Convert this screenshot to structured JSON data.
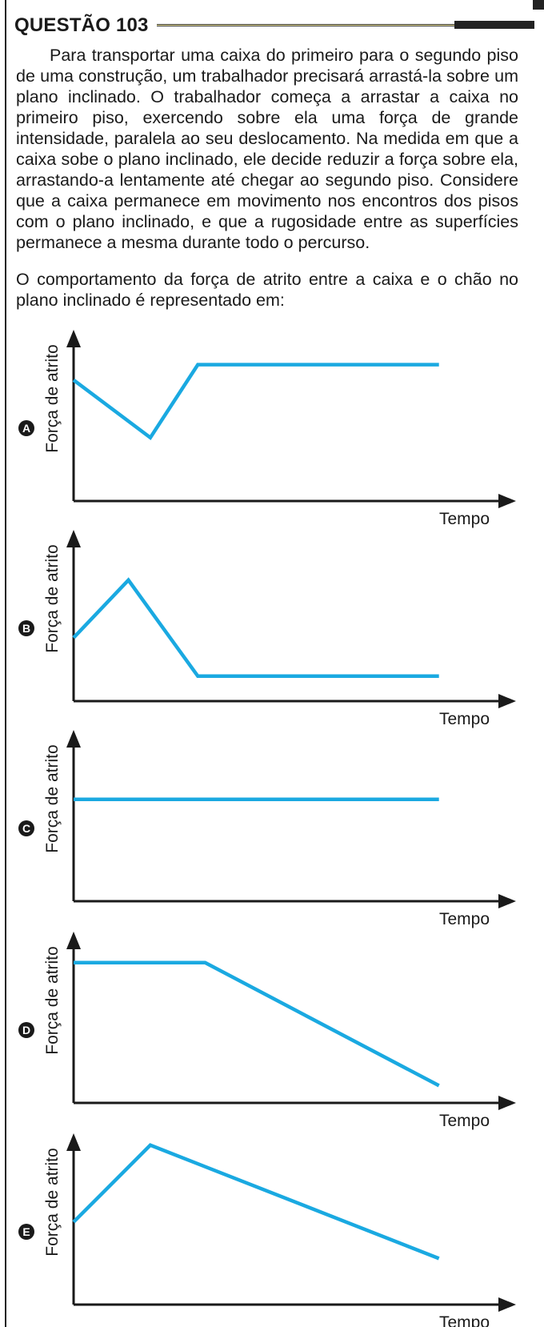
{
  "question": {
    "title": "QUESTÃO 103",
    "stem": "Para transportar uma caixa do primeiro para o segundo piso de uma construção, um trabalhador precisará arrastá-la sobre um plano inclinado. O trabalhador começa a arrastar a caixa no primeiro piso, exercendo sobre ela uma força de grande intensidade, paralela ao seu deslocamento. Na medida em que a caixa sobe o plano inclinado, ele decide reduzir a força sobre ela, arrastando-a lentamente até chegar ao segundo piso. Considere que a caixa permanece em movimento nos encontros dos pisos com o plano inclinado, e que a rugosidade entre as superfícies permanece a mesma durante todo o percurso.",
    "prompt": "O comportamento da força de atrito entre a caixa e o chão no plano inclinado é representado em:"
  },
  "colors": {
    "line": "#1aa9e1",
    "axis": "#1a1a1a"
  },
  "chart_data": [
    {
      "option": "A",
      "type": "line",
      "ylabel": "Força de atrito",
      "xlabel": "Tempo",
      "x": [
        0,
        0.21,
        0.34,
        1.0
      ],
      "y": [
        0.63,
        0.33,
        0.71,
        0.71
      ],
      "xlim": [
        0,
        1.2
      ],
      "ylim": [
        0,
        1
      ]
    },
    {
      "option": "B",
      "type": "line",
      "ylabel": "Força de atrito",
      "xlabel": "Tempo",
      "x": [
        0,
        0.15,
        0.34,
        1.0
      ],
      "y": [
        0.33,
        0.63,
        0.13,
        0.13
      ],
      "xlim": [
        0,
        1.2
      ],
      "ylim": [
        0,
        1
      ]
    },
    {
      "option": "C",
      "type": "line",
      "ylabel": "Força de atrito",
      "xlabel": "Tempo",
      "x": [
        0,
        1.0
      ],
      "y": [
        0.53,
        0.53
      ],
      "xlim": [
        0,
        1.2
      ],
      "ylim": [
        0,
        1
      ]
    },
    {
      "option": "D",
      "type": "line",
      "ylabel": "Força de atrito",
      "xlabel": "Tempo",
      "x": [
        0,
        0.36,
        1.0
      ],
      "y": [
        0.73,
        0.73,
        0.09
      ],
      "xlim": [
        0,
        1.2
      ],
      "ylim": [
        0,
        1
      ]
    },
    {
      "option": "E",
      "type": "line",
      "ylabel": "Força de atrito",
      "xlabel": "Tempo",
      "x": [
        0,
        0.21,
        1.0
      ],
      "y": [
        0.43,
        0.83,
        0.24
      ],
      "xlim": [
        0,
        1.2
      ],
      "ylim": [
        0,
        1
      ]
    }
  ]
}
